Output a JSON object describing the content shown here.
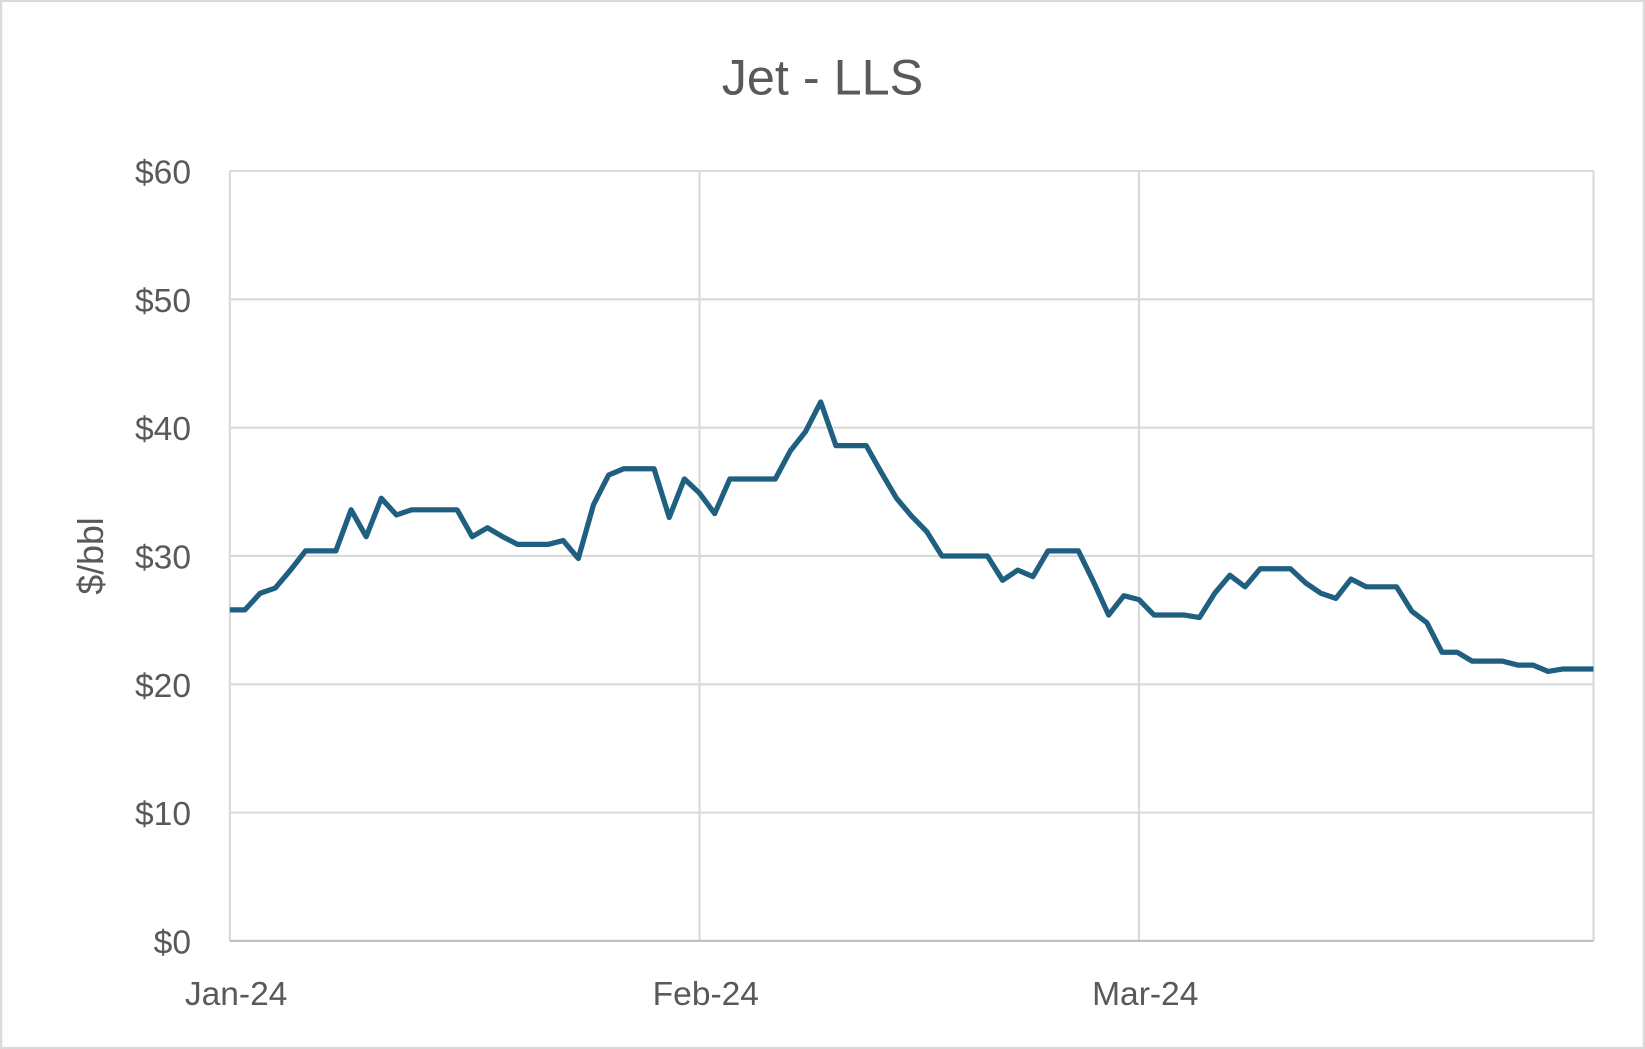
{
  "chart_data": {
    "type": "line",
    "title": "Jet - LLS",
    "xlabel": "",
    "ylabel": "$/bbl",
    "ylim": [
      0,
      60
    ],
    "xlim": [
      "2024-01-01",
      "2024-03-31"
    ],
    "yticks": [
      "$0",
      "$10",
      "$20",
      "$30",
      "$40",
      "$50",
      "$60"
    ],
    "xticks": [
      {
        "date": "2024-01-01",
        "label": "Jan-24"
      },
      {
        "date": "2024-02-01",
        "label": "Feb-24"
      },
      {
        "date": "2024-03-01",
        "label": "Mar-24"
      }
    ],
    "grid": true,
    "legend": "none",
    "colors": {
      "line": "#1f5f80",
      "grid": "#d9d9d9",
      "text": "#595959",
      "border": "#d9d9d9"
    },
    "series": [
      {
        "points": [
          [
            "2024-01-01",
            25.8
          ],
          [
            "2024-01-02",
            25.8
          ],
          [
            "2024-01-03",
            27.1
          ],
          [
            "2024-01-04",
            27.5
          ],
          [
            "2024-01-05",
            28.9
          ],
          [
            "2024-01-06",
            30.4
          ],
          [
            "2024-01-08",
            30.4
          ],
          [
            "2024-01-09",
            33.6
          ],
          [
            "2024-01-10",
            31.5
          ],
          [
            "2024-01-11",
            34.5
          ],
          [
            "2024-01-12",
            33.2
          ],
          [
            "2024-01-13",
            33.6
          ],
          [
            "2024-01-16",
            33.6
          ],
          [
            "2024-01-17",
            31.5
          ],
          [
            "2024-01-18",
            32.2
          ],
          [
            "2024-01-19",
            31.5
          ],
          [
            "2024-01-20",
            30.9
          ],
          [
            "2024-01-22",
            30.9
          ],
          [
            "2024-01-23",
            31.2
          ],
          [
            "2024-01-24",
            29.8
          ],
          [
            "2024-01-25",
            34.0
          ],
          [
            "2024-01-26",
            36.3
          ],
          [
            "2024-01-27",
            36.8
          ],
          [
            "2024-01-29",
            36.8
          ],
          [
            "2024-01-30",
            33.0
          ],
          [
            "2024-01-31",
            36.0
          ],
          [
            "2024-02-01",
            34.9
          ],
          [
            "2024-02-02",
            33.3
          ],
          [
            "2024-02-03",
            36.0
          ],
          [
            "2024-02-06",
            36.0
          ],
          [
            "2024-02-07",
            38.2
          ],
          [
            "2024-02-08",
            39.7
          ],
          [
            "2024-02-09",
            42.0
          ],
          [
            "2024-02-10",
            38.6
          ],
          [
            "2024-02-12",
            38.6
          ],
          [
            "2024-02-13",
            36.5
          ],
          [
            "2024-02-14",
            34.5
          ],
          [
            "2024-02-15",
            33.1
          ],
          [
            "2024-02-16",
            31.9
          ],
          [
            "2024-02-17",
            30.0
          ],
          [
            "2024-02-20",
            30.0
          ],
          [
            "2024-02-21",
            28.1
          ],
          [
            "2024-02-22",
            28.9
          ],
          [
            "2024-02-23",
            28.4
          ],
          [
            "2024-02-24",
            30.4
          ],
          [
            "2024-02-26",
            30.4
          ],
          [
            "2024-02-27",
            28.0
          ],
          [
            "2024-02-28",
            25.4
          ],
          [
            "2024-02-29",
            26.9
          ],
          [
            "2024-03-01",
            26.6
          ],
          [
            "2024-03-02",
            25.4
          ],
          [
            "2024-03-04",
            25.4
          ],
          [
            "2024-03-05",
            25.2
          ],
          [
            "2024-03-06",
            27.1
          ],
          [
            "2024-03-07",
            28.5
          ],
          [
            "2024-03-08",
            27.6
          ],
          [
            "2024-03-09",
            29.0
          ],
          [
            "2024-03-11",
            29.0
          ],
          [
            "2024-03-12",
            27.9
          ],
          [
            "2024-03-13",
            27.1
          ],
          [
            "2024-03-14",
            26.7
          ],
          [
            "2024-03-15",
            28.2
          ],
          [
            "2024-03-16",
            27.6
          ],
          [
            "2024-03-18",
            27.6
          ],
          [
            "2024-03-19",
            25.7
          ],
          [
            "2024-03-20",
            24.8
          ],
          [
            "2024-03-21",
            22.5
          ],
          [
            "2024-03-22",
            22.5
          ],
          [
            "2024-03-23",
            21.8
          ],
          [
            "2024-03-25",
            21.8
          ],
          [
            "2024-03-26",
            21.5
          ],
          [
            "2024-03-27",
            21.5
          ],
          [
            "2024-03-28",
            21.0
          ],
          [
            "2024-03-29",
            21.2
          ],
          [
            "2024-03-31",
            21.2
          ]
        ]
      }
    ]
  }
}
